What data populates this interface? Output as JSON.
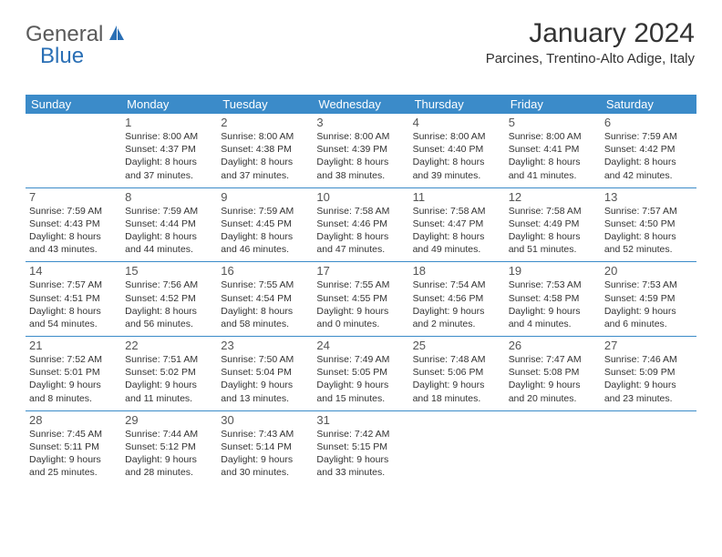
{
  "logo": {
    "text1": "General",
    "text2": "Blue"
  },
  "header": {
    "month_title": "January 2024",
    "location": "Parcines, Trentino-Alto Adige, Italy"
  },
  "styling": {
    "header_bg": "#3b8bc9",
    "header_text": "#ffffff",
    "divider_color": "#3b8bc9",
    "body_text": "#333333",
    "daynum_color": "#555555",
    "font_family": "Arial, Helvetica, sans-serif",
    "day_header_fontsize": 13,
    "daynum_fontsize": 13,
    "detail_fontsize": 10.5,
    "title_fontsize": 30,
    "location_fontsize": 15
  },
  "day_names": [
    "Sunday",
    "Monday",
    "Tuesday",
    "Wednesday",
    "Thursday",
    "Friday",
    "Saturday"
  ],
  "weeks": [
    [
      null,
      {
        "n": "1",
        "sr": "8:00 AM",
        "ss": "4:37 PM",
        "dl": "8 hours and 37 minutes."
      },
      {
        "n": "2",
        "sr": "8:00 AM",
        "ss": "4:38 PM",
        "dl": "8 hours and 37 minutes."
      },
      {
        "n": "3",
        "sr": "8:00 AM",
        "ss": "4:39 PM",
        "dl": "8 hours and 38 minutes."
      },
      {
        "n": "4",
        "sr": "8:00 AM",
        "ss": "4:40 PM",
        "dl": "8 hours and 39 minutes."
      },
      {
        "n": "5",
        "sr": "8:00 AM",
        "ss": "4:41 PM",
        "dl": "8 hours and 41 minutes."
      },
      {
        "n": "6",
        "sr": "7:59 AM",
        "ss": "4:42 PM",
        "dl": "8 hours and 42 minutes."
      }
    ],
    [
      {
        "n": "7",
        "sr": "7:59 AM",
        "ss": "4:43 PM",
        "dl": "8 hours and 43 minutes."
      },
      {
        "n": "8",
        "sr": "7:59 AM",
        "ss": "4:44 PM",
        "dl": "8 hours and 44 minutes."
      },
      {
        "n": "9",
        "sr": "7:59 AM",
        "ss": "4:45 PM",
        "dl": "8 hours and 46 minutes."
      },
      {
        "n": "10",
        "sr": "7:58 AM",
        "ss": "4:46 PM",
        "dl": "8 hours and 47 minutes."
      },
      {
        "n": "11",
        "sr": "7:58 AM",
        "ss": "4:47 PM",
        "dl": "8 hours and 49 minutes."
      },
      {
        "n": "12",
        "sr": "7:58 AM",
        "ss": "4:49 PM",
        "dl": "8 hours and 51 minutes."
      },
      {
        "n": "13",
        "sr": "7:57 AM",
        "ss": "4:50 PM",
        "dl": "8 hours and 52 minutes."
      }
    ],
    [
      {
        "n": "14",
        "sr": "7:57 AM",
        "ss": "4:51 PM",
        "dl": "8 hours and 54 minutes."
      },
      {
        "n": "15",
        "sr": "7:56 AM",
        "ss": "4:52 PM",
        "dl": "8 hours and 56 minutes."
      },
      {
        "n": "16",
        "sr": "7:55 AM",
        "ss": "4:54 PM",
        "dl": "8 hours and 58 minutes."
      },
      {
        "n": "17",
        "sr": "7:55 AM",
        "ss": "4:55 PM",
        "dl": "9 hours and 0 minutes."
      },
      {
        "n": "18",
        "sr": "7:54 AM",
        "ss": "4:56 PM",
        "dl": "9 hours and 2 minutes."
      },
      {
        "n": "19",
        "sr": "7:53 AM",
        "ss": "4:58 PM",
        "dl": "9 hours and 4 minutes."
      },
      {
        "n": "20",
        "sr": "7:53 AM",
        "ss": "4:59 PM",
        "dl": "9 hours and 6 minutes."
      }
    ],
    [
      {
        "n": "21",
        "sr": "7:52 AM",
        "ss": "5:01 PM",
        "dl": "9 hours and 8 minutes."
      },
      {
        "n": "22",
        "sr": "7:51 AM",
        "ss": "5:02 PM",
        "dl": "9 hours and 11 minutes."
      },
      {
        "n": "23",
        "sr": "7:50 AM",
        "ss": "5:04 PM",
        "dl": "9 hours and 13 minutes."
      },
      {
        "n": "24",
        "sr": "7:49 AM",
        "ss": "5:05 PM",
        "dl": "9 hours and 15 minutes."
      },
      {
        "n": "25",
        "sr": "7:48 AM",
        "ss": "5:06 PM",
        "dl": "9 hours and 18 minutes."
      },
      {
        "n": "26",
        "sr": "7:47 AM",
        "ss": "5:08 PM",
        "dl": "9 hours and 20 minutes."
      },
      {
        "n": "27",
        "sr": "7:46 AM",
        "ss": "5:09 PM",
        "dl": "9 hours and 23 minutes."
      }
    ],
    [
      {
        "n": "28",
        "sr": "7:45 AM",
        "ss": "5:11 PM",
        "dl": "9 hours and 25 minutes."
      },
      {
        "n": "29",
        "sr": "7:44 AM",
        "ss": "5:12 PM",
        "dl": "9 hours and 28 minutes."
      },
      {
        "n": "30",
        "sr": "7:43 AM",
        "ss": "5:14 PM",
        "dl": "9 hours and 30 minutes."
      },
      {
        "n": "31",
        "sr": "7:42 AM",
        "ss": "5:15 PM",
        "dl": "9 hours and 33 minutes."
      },
      null,
      null,
      null
    ]
  ],
  "labels": {
    "sunrise_prefix": "Sunrise: ",
    "sunset_prefix": "Sunset: ",
    "daylight_prefix": "Daylight: "
  }
}
